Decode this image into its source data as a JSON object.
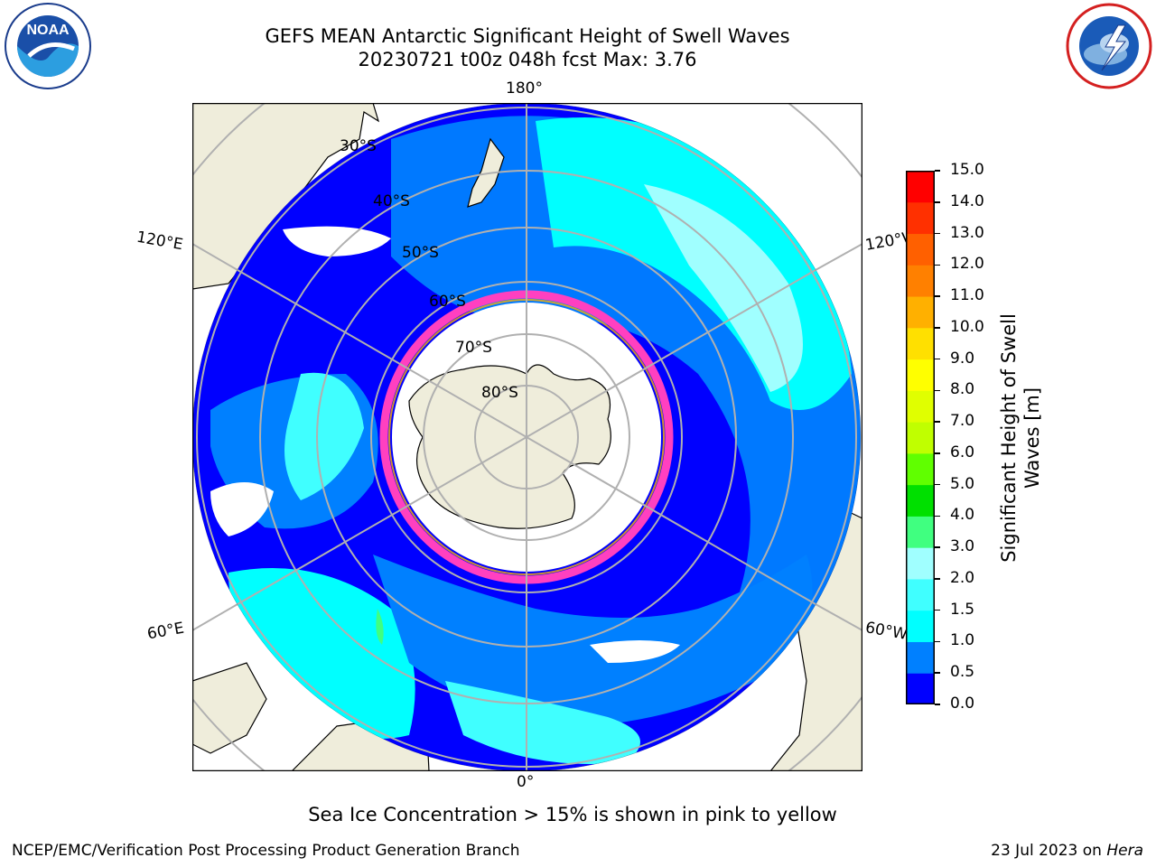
{
  "header": {
    "title_line1": "GEFS MEAN Antarctic Significant Height of Swell Waves",
    "title_line2": "20230721 t00z 048h fcst   Max: 3.76"
  },
  "logos": {
    "noaa": {
      "text": "NOAA",
      "ring_text": "NATIONAL OCEANIC AND ATMOSPHERIC ADMINISTRATION · U.S. DEPARTMENT OF COMMERCE"
    },
    "nws": {
      "ring_text": "NATIONAL WEATHER SERVICE"
    }
  },
  "map": {
    "projection": "south-polar-stereographic",
    "longitude_labels": {
      "top": "180°",
      "bottom": "0°",
      "left_upper": "120°E",
      "left_lower": "60°E",
      "right_upper": "120°W",
      "right_lower": "60°W"
    },
    "latitude_labels": [
      "30°S",
      "40°S",
      "50°S",
      "60°S",
      "70°S",
      "80°S"
    ],
    "colors": {
      "land": "#efeddb",
      "ocean_low": "#0000ff",
      "ocean_mid": "#0080ff",
      "ocean_high": "#00ffff",
      "ice": "#ff40c0",
      "grid": "#b0b0b0"
    }
  },
  "colorbar": {
    "title_line1": "Significant Height of Swell",
    "title_line2": "Waves [m]",
    "ticks": [
      "15.0",
      "14.0",
      "13.0",
      "12.0",
      "11.0",
      "10.0",
      "9.0",
      "8.0",
      "7.0",
      "6.0",
      "5.0",
      "4.0",
      "3.0",
      "2.0",
      "1.5",
      "1.0",
      "0.5",
      "0.0"
    ],
    "colors": [
      "#0000ff",
      "#0080ff",
      "#00ffff",
      "#40ffff",
      "#a0ffff",
      "#40ff80",
      "#00e000",
      "#60ff00",
      "#c0ff00",
      "#e0ff00",
      "#ffff00",
      "#ffe000",
      "#ffb000",
      "#ff8000",
      "#ff6000",
      "#ff3000",
      "#ff0000"
    ]
  },
  "note": "Sea Ice Concentration > 15% is shown in pink to yellow",
  "footer": {
    "left": "NCEP/EMC/Verification Post Processing Product Generation Branch",
    "date": "23 Jul 2023 on ",
    "machine": "Hera"
  }
}
